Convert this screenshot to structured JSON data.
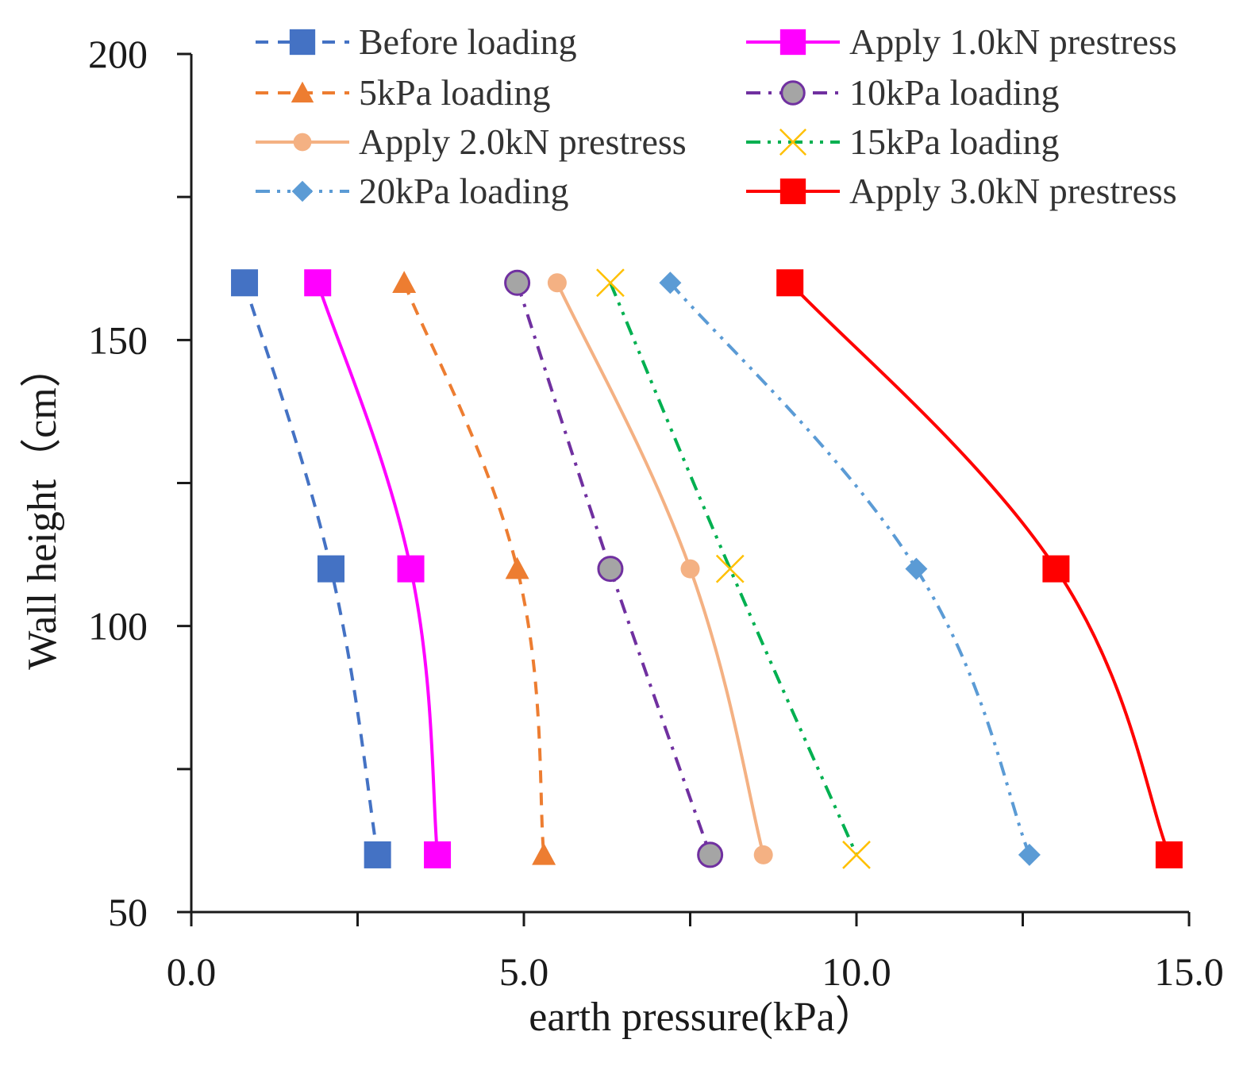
{
  "chart_data": {
    "type": "line",
    "title": "",
    "xlabel": "earth pressure(kPa）",
    "ylabel": "Wall height（cm）",
    "xlim": [
      0,
      15
    ],
    "ylim": [
      50,
      200
    ],
    "x_ticks": [
      "0.0",
      "5.0",
      "10.0",
      "15.0"
    ],
    "y_ticks": [
      "50",
      "100",
      "150",
      "200"
    ],
    "x_tick_values": [
      0,
      5,
      10,
      15
    ],
    "y_tick_values": [
      50,
      100,
      150,
      200
    ],
    "x_minor_ticks": [
      2.5,
      7.5,
      12.5
    ],
    "y_minor_ticks": [
      75,
      125,
      175
    ],
    "grid": false,
    "legend_position": "top",
    "series": [
      {
        "name": "Before loading",
        "color": "#4472c4",
        "dash": "dash",
        "marker": "square",
        "points": [
          {
            "x": 0.8,
            "y": 160
          },
          {
            "x": 2.1,
            "y": 110
          },
          {
            "x": 2.8,
            "y": 60
          }
        ]
      },
      {
        "name": "Apply 1.0kN prestress",
        "color": "#ff00ff",
        "dash": "solid",
        "marker": "square",
        "points": [
          {
            "x": 1.9,
            "y": 160
          },
          {
            "x": 3.3,
            "y": 110
          },
          {
            "x": 3.7,
            "y": 60
          }
        ]
      },
      {
        "name": "5kPa loading",
        "color": "#ed7d31",
        "dash": "dash",
        "marker": "triangle",
        "points": [
          {
            "x": 3.2,
            "y": 160
          },
          {
            "x": 4.9,
            "y": 110
          },
          {
            "x": 5.3,
            "y": 60
          }
        ]
      },
      {
        "name": "10kPa loading",
        "color": "#7030a0",
        "dash": "dashdot",
        "marker": "circle-gray",
        "points": [
          {
            "x": 4.9,
            "y": 160
          },
          {
            "x": 6.3,
            "y": 110
          },
          {
            "x": 7.8,
            "y": 60
          }
        ]
      },
      {
        "name": "Apply 2.0kN prestress",
        "color": "#f4b183",
        "dash": "solid",
        "marker": "circle",
        "points": [
          {
            "x": 5.5,
            "y": 160
          },
          {
            "x": 7.5,
            "y": 110
          },
          {
            "x": 8.6,
            "y": 60
          }
        ]
      },
      {
        "name": "15kPa loading",
        "color": "#00b050",
        "dash": "dashdotdot",
        "marker": "x",
        "points": [
          {
            "x": 6.3,
            "y": 160
          },
          {
            "x": 8.1,
            "y": 110
          },
          {
            "x": 10.0,
            "y": 60
          }
        ]
      },
      {
        "name": "20kPa loading",
        "color": "#5b9bd5",
        "dash": "dashdotdot",
        "marker": "diamond",
        "points": [
          {
            "x": 7.2,
            "y": 160
          },
          {
            "x": 10.9,
            "y": 110
          },
          {
            "x": 12.6,
            "y": 60
          }
        ]
      },
      {
        "name": "Apply 3.0kN prestress",
        "color": "#ff0000",
        "dash": "solid",
        "marker": "square",
        "points": [
          {
            "x": 9.0,
            "y": 160
          },
          {
            "x": 13.0,
            "y": 110
          },
          {
            "x": 14.7,
            "y": 60
          }
        ]
      }
    ],
    "legend_order": [
      0,
      1,
      2,
      3,
      4,
      5,
      6,
      7
    ]
  }
}
